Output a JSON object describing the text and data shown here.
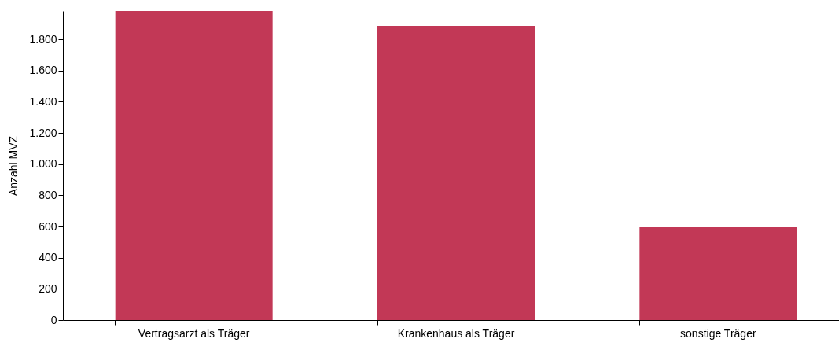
{
  "chart_data": {
    "type": "bar",
    "ylabel": "Anzahl MVZ",
    "categories": [
      "Vertragsarzt als Träger",
      "Krankenhaus als Träger",
      "sonstige Träger"
    ],
    "values": [
      1982,
      1886,
      595
    ],
    "color": "#c23856",
    "ylim": [
      0,
      1982
    ],
    "yticks": [
      0,
      200,
      400,
      600,
      800,
      {
        "value": 1000,
        "label": "1.000"
      },
      {
        "value": 1200,
        "label": "1.200"
      },
      {
        "value": 1400,
        "label": "1.400"
      },
      {
        "value": 1600,
        "label": "1.600"
      },
      {
        "value": 1800,
        "label": "1.800"
      }
    ],
    "grid": false
  }
}
